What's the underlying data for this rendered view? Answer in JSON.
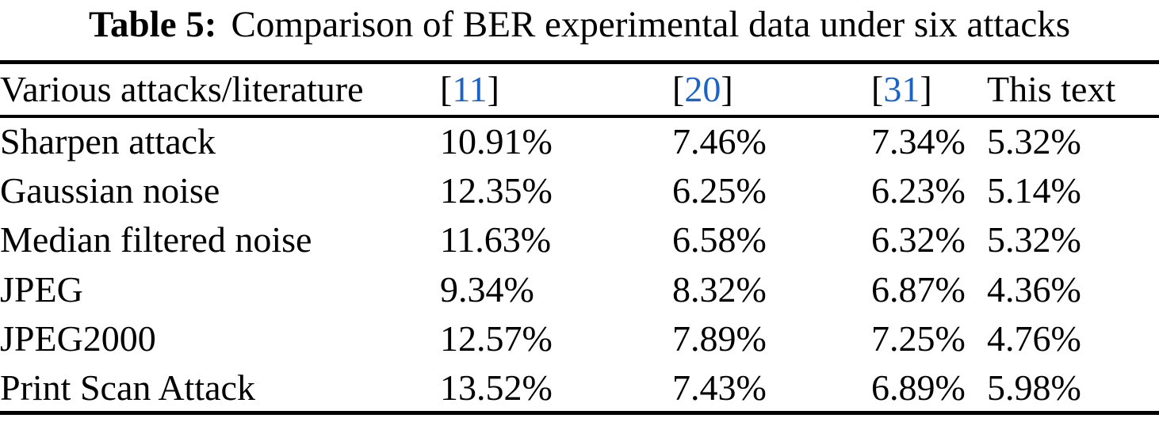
{
  "caption": {
    "tag": "Table 5:",
    "text": "Comparison of BER experimental data under six attacks"
  },
  "colors": {
    "text": "#000000",
    "rule": "#000000",
    "citation_link": "#1b63c5",
    "background": "#ffffff"
  },
  "table": {
    "header": {
      "col0": "Various attacks/literature",
      "col1": {
        "open": "[",
        "num": "11",
        "close": "]"
      },
      "col2": {
        "open": "[",
        "num": "20",
        "close": "]"
      },
      "col3": {
        "open": "[",
        "num": "31",
        "close": "]"
      },
      "col4": "This text"
    },
    "rows": [
      {
        "name": "Sharpen attack",
        "v1": "10.91%",
        "v2": "7.46%",
        "v3": "7.34%",
        "v4": "5.32%"
      },
      {
        "name": "Gaussian noise",
        "v1": "12.35%",
        "v2": "6.25%",
        "v3": "6.23%",
        "v4": "5.14%"
      },
      {
        "name": "Median filtered noise",
        "v1": "11.63%",
        "v2": "6.58%",
        "v3": "6.32%",
        "v4": "5.32%"
      },
      {
        "name": "JPEG",
        "v1": "9.34%",
        "v2": "8.32%",
        "v3": "6.87%",
        "v4": "4.36%"
      },
      {
        "name": "JPEG2000",
        "v1": "12.57%",
        "v2": "7.89%",
        "v3": "7.25%",
        "v4": "4.76%"
      },
      {
        "name": "Print Scan Attack",
        "v1": "13.52%",
        "v2": "7.43%",
        "v3": "6.89%",
        "v4": "5.98%"
      }
    ]
  },
  "chart_data": {
    "type": "table",
    "title": "Table 5: Comparison of BER experimental data under six attacks",
    "columns": [
      "Various attacks/literature",
      "[11]",
      "[20]",
      "[31]",
      "This text"
    ],
    "rows": [
      [
        "Sharpen attack",
        "10.91%",
        "7.46%",
        "7.34%",
        "5.32%"
      ],
      [
        "Gaussian noise",
        "12.35%",
        "6.25%",
        "6.23%",
        "5.14%"
      ],
      [
        "Median filtered noise",
        "11.63%",
        "6.58%",
        "6.32%",
        "5.32%"
      ],
      [
        "JPEG",
        "9.34%",
        "8.32%",
        "6.87%",
        "4.36%"
      ],
      [
        "JPEG2000",
        "12.57%",
        "7.89%",
        "7.25%",
        "4.76%"
      ],
      [
        "Print Scan Attack",
        "13.52%",
        "7.43%",
        "6.89%",
        "5.98%"
      ]
    ]
  }
}
